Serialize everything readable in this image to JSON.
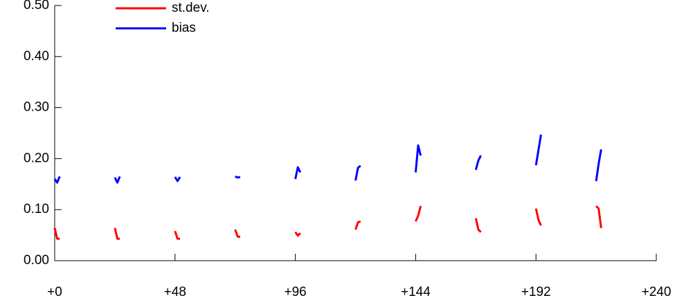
{
  "chart_data": {
    "type": "line",
    "x": [
      0,
      1,
      2,
      12,
      24,
      25,
      26,
      36,
      48,
      49,
      50,
      60,
      72,
      73,
      74,
      84,
      96,
      97,
      98,
      108,
      120,
      121,
      122,
      132,
      144,
      145,
      146,
      156,
      168,
      169,
      170,
      180,
      192,
      193,
      194,
      204,
      216,
      217,
      218
    ],
    "series": [
      {
        "name": "st.dev.",
        "color": "#ff0000",
        "values": [
          0.064,
          0.043,
          0.043,
          null,
          0.064,
          0.043,
          0.043,
          null,
          0.058,
          0.043,
          0.043,
          null,
          0.061,
          0.047,
          0.047,
          null,
          0.056,
          0.049,
          0.054,
          null,
          0.061,
          0.075,
          0.077,
          null,
          0.077,
          0.088,
          0.107,
          null,
          0.083,
          0.061,
          0.056,
          null,
          0.102,
          0.08,
          0.069,
          null,
          0.107,
          0.102,
          0.064
        ]
      },
      {
        "name": "bias",
        "color": "#0000ff",
        "values": [
          0.16,
          0.153,
          0.165,
          null,
          0.163,
          0.153,
          0.165,
          null,
          0.164,
          0.156,
          0.164,
          null,
          0.165,
          0.163,
          0.164,
          null,
          0.16,
          0.183,
          0.173,
          null,
          0.157,
          0.182,
          0.186,
          null,
          0.173,
          0.226,
          0.206,
          null,
          0.178,
          0.196,
          0.206,
          null,
          0.187,
          0.217,
          0.247,
          null,
          0.156,
          0.19,
          0.218
        ]
      }
    ],
    "xlim": [
      0,
      240
    ],
    "xticks": [
      {
        "value": 0,
        "label": "+0"
      },
      {
        "value": 48,
        "label": "+48"
      },
      {
        "value": 96,
        "label": "+96"
      },
      {
        "value": 144,
        "label": "+144"
      },
      {
        "value": 192,
        "label": "+192"
      },
      {
        "value": 240,
        "label": "+240"
      }
    ],
    "ylim": [
      0,
      0.5
    ],
    "yticks": [
      {
        "value": 0,
        "label": "0.00"
      },
      {
        "value": 0.1,
        "label": "0.10"
      },
      {
        "value": 0.2,
        "label": "0.20"
      },
      {
        "value": 0.3,
        "label": "0.30"
      },
      {
        "value": 0.4,
        "label": "0.40"
      },
      {
        "value": 0.5,
        "label": "0.50"
      }
    ],
    "legend": "upper left"
  }
}
